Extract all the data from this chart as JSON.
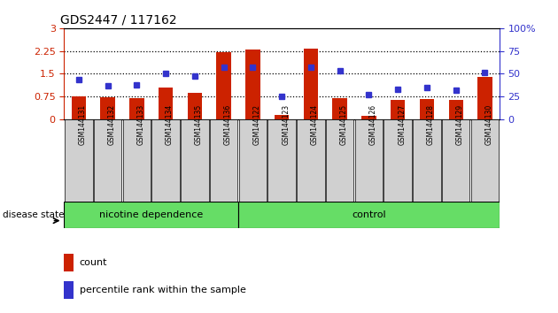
{
  "title": "GDS2447 / 117162",
  "samples": [
    "GSM144131",
    "GSM144132",
    "GSM144133",
    "GSM144134",
    "GSM144135",
    "GSM144136",
    "GSM144122",
    "GSM144123",
    "GSM144124",
    "GSM144125",
    "GSM144126",
    "GSM144127",
    "GSM144128",
    "GSM144129",
    "GSM144130"
  ],
  "counts": [
    0.76,
    0.72,
    0.69,
    1.05,
    0.85,
    2.2,
    2.3,
    0.12,
    2.32,
    0.7,
    0.1,
    0.62,
    0.65,
    0.62,
    1.38
  ],
  "percentile": [
    43,
    37,
    38,
    50,
    47,
    57,
    57,
    25,
    57,
    53,
    27,
    33,
    35,
    32,
    51
  ],
  "group1_count": 6,
  "group2_count": 9,
  "group1_label": "nicotine dependence",
  "group2_label": "control",
  "disease_state_label": "disease state",
  "bar_color": "#cc2200",
  "dot_color": "#3333cc",
  "yticks_left": [
    0,
    0.75,
    1.5,
    2.25,
    3
  ],
  "yticks_right": [
    0,
    25,
    50,
    75,
    100
  ],
  "ylim_left": [
    0,
    3
  ],
  "ylim_right": [
    0,
    100
  ],
  "tick_bg": "#d0d0d0",
  "group_bg": "#66dd66",
  "left_axis_color": "#cc2200",
  "right_axis_color": "#3333cc",
  "legend_count_label": "count",
  "legend_pct_label": "percentile rank within the sample"
}
